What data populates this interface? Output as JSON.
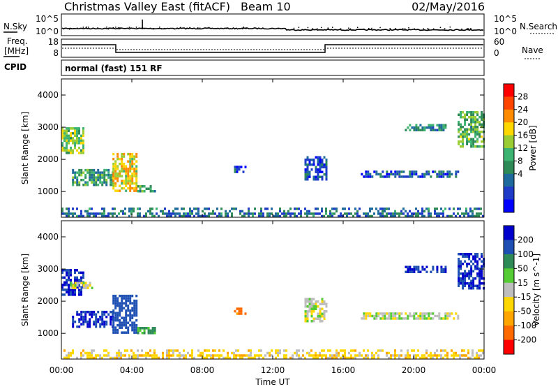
{
  "header": {
    "title": "Christmas Valley East (fitACF)",
    "beam": "Beam 10",
    "date": "02/May/2016"
  },
  "nsky_panel": {
    "left_label": "N.Sky",
    "left_ticks": [
      "10^5",
      "10^0"
    ],
    "right_ticks": [
      "10^5",
      "10^0"
    ],
    "right_label": "N.Search"
  },
  "freq_panel": {
    "left_label_1": "Freq.",
    "left_label_2": "[MHz]",
    "left_ticks": [
      "18",
      "8"
    ],
    "right_ticks": [
      "60",
      "0"
    ],
    "right_label": "Nave"
  },
  "cpid": {
    "label": "CPID",
    "value": "normal (fast) 151 RF"
  },
  "x_axis": {
    "ticks": [
      "00:00",
      "04:00",
      "08:00",
      "12:00",
      "16:00",
      "20:00",
      "00:00"
    ],
    "label": "Time UT"
  },
  "chart_data": [
    {
      "type": "heatmap",
      "name": "power",
      "ylabel": "Slant Range [km]",
      "yticks": [
        "4000",
        "3000",
        "2000",
        "1000"
      ],
      "ylim": [
        200,
        4500
      ],
      "xlim": [
        0,
        24
      ],
      "colorbar": {
        "label": "Power [dB]",
        "ticks": [
          "28",
          "24",
          "20",
          "16",
          "12",
          "8",
          "4"
        ],
        "colors": [
          "#ff0000",
          "#ff4500",
          "#ff8c00",
          "#ffd700",
          "#9acd32",
          "#3cb371",
          "#2e8b57",
          "#1e6a9c",
          "#1e3cc8",
          "#0000ff"
        ]
      },
      "echo_regions": [
        {
          "t": [
            0.0,
            1.2
          ],
          "r": [
            2200,
            3000
          ],
          "level": 18
        },
        {
          "t": [
            0.6,
            2.9
          ],
          "r": [
            1200,
            1700
          ],
          "level": 14
        },
        {
          "t": [
            2.9,
            4.3
          ],
          "r": [
            1050,
            2200
          ],
          "level": 22
        },
        {
          "t": [
            4.3,
            5.3
          ],
          "r": [
            1000,
            1200
          ],
          "level": 14
        },
        {
          "t": [
            9.8,
            10.5
          ],
          "r": [
            1600,
            1800
          ],
          "level": 8
        },
        {
          "t": [
            13.8,
            15.1
          ],
          "r": [
            1400,
            2100
          ],
          "level": 8
        },
        {
          "t": [
            17.0,
            22.5
          ],
          "r": [
            1450,
            1650
          ],
          "level": 8
        },
        {
          "t": [
            19.5,
            21.8
          ],
          "r": [
            2900,
            3100
          ],
          "level": 12
        },
        {
          "t": [
            22.5,
            24.0
          ],
          "r": [
            2400,
            3500
          ],
          "level": 16
        },
        {
          "t": [
            0.0,
            24.0
          ],
          "r": [
            200,
            500
          ],
          "level": 10
        }
      ]
    },
    {
      "type": "heatmap",
      "name": "velocity",
      "ylabel": "Slant Range [km]",
      "yticks": [
        "4000",
        "3000",
        "2000",
        "1000"
      ],
      "ylim": [
        200,
        4500
      ],
      "xlim": [
        0,
        24
      ],
      "colorbar": {
        "label": "Velocity [m s^-1]",
        "ticks": [
          "200",
          "100",
          "50",
          "15",
          "-15",
          "-50",
          "-100",
          "-200"
        ],
        "colors": [
          "#0000cc",
          "#1e50b4",
          "#2e8b57",
          "#55cc33",
          "#bebebe",
          "#ffd700",
          "#ffa500",
          "#ff6a00",
          "#ff0000"
        ]
      },
      "echo_regions": [
        {
          "t": [
            0.0,
            1.2
          ],
          "r": [
            2200,
            3000
          ],
          "vel": 200
        },
        {
          "t": [
            0.5,
            1.8
          ],
          "r": [
            2400,
            2600
          ],
          "vel": 0
        },
        {
          "t": [
            0.6,
            2.9
          ],
          "r": [
            1200,
            1700
          ],
          "vel": 200
        },
        {
          "t": [
            2.9,
            4.3
          ],
          "r": [
            1050,
            2200
          ],
          "vel": 150
        },
        {
          "t": [
            4.3,
            5.3
          ],
          "r": [
            1000,
            1200
          ],
          "vel": 60
        },
        {
          "t": [
            9.8,
            10.5
          ],
          "r": [
            1600,
            1800
          ],
          "vel": -120
        },
        {
          "t": [
            13.8,
            15.1
          ],
          "r": [
            1400,
            2100
          ],
          "vel": 0
        },
        {
          "t": [
            17.0,
            22.5
          ],
          "r": [
            1450,
            1650
          ],
          "vel": 0
        },
        {
          "t": [
            19.5,
            21.8
          ],
          "r": [
            2900,
            3100
          ],
          "vel": 200
        },
        {
          "t": [
            22.5,
            24.0
          ],
          "r": [
            2400,
            3500
          ],
          "vel": 200
        },
        {
          "t": [
            0.0,
            24.0
          ],
          "r": [
            200,
            500
          ],
          "vel": -30
        }
      ]
    }
  ]
}
